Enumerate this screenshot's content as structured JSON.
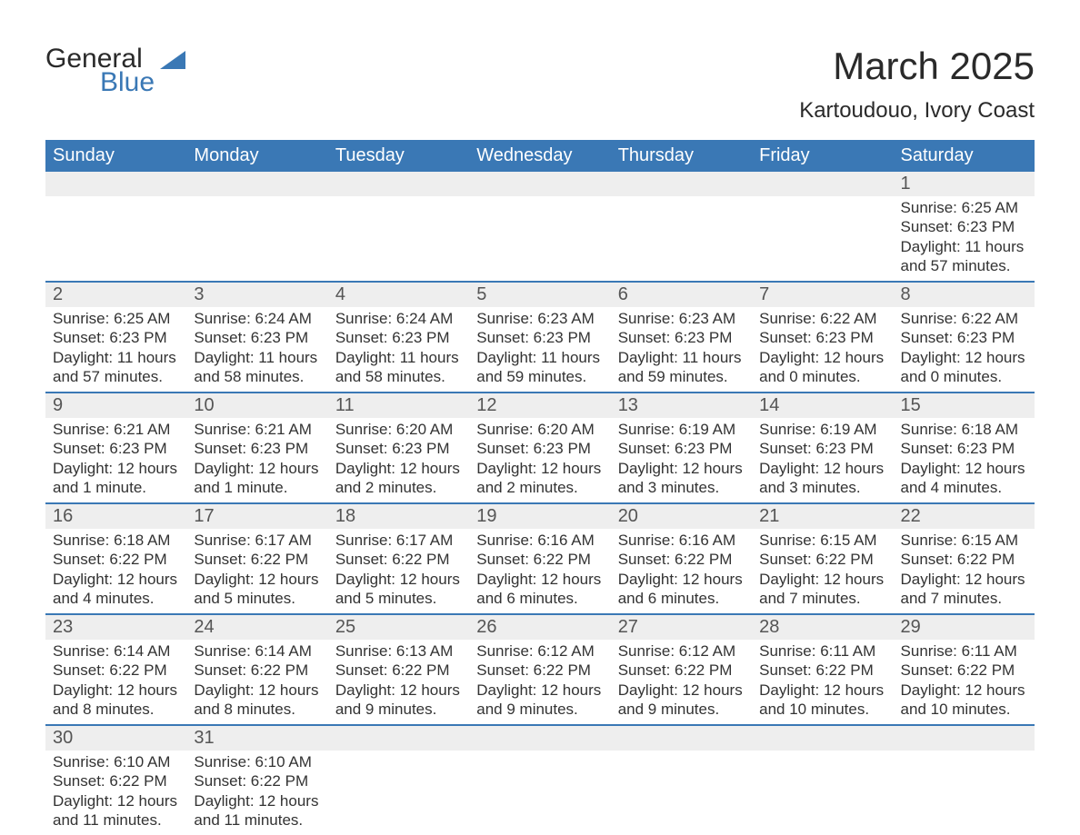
{
  "brand": {
    "line1": "General",
    "line2": "Blue",
    "logo_color": "#3a78b5",
    "text_color": "#2a2a2a"
  },
  "title": {
    "month": "March 2025",
    "location": "Kartoudouo, Ivory Coast",
    "month_fontsize": 42,
    "location_fontsize": 24
  },
  "colors": {
    "header_bg": "#3a78b5",
    "header_text": "#ffffff",
    "row_divider": "#3a78b5",
    "daynum_bg": "#eeeeee",
    "body_text": "#333333",
    "page_bg": "#ffffff"
  },
  "typography": {
    "header_fontsize": 20,
    "daynum_fontsize": 20,
    "detail_fontsize": 17,
    "font_family": "Arial"
  },
  "weekdays": [
    "Sunday",
    "Monday",
    "Tuesday",
    "Wednesday",
    "Thursday",
    "Friday",
    "Saturday"
  ],
  "weeks": [
    [
      null,
      null,
      null,
      null,
      null,
      null,
      {
        "n": "1",
        "sunrise": "Sunrise: 6:25 AM",
        "sunset": "Sunset: 6:23 PM",
        "daylight1": "Daylight: 11 hours",
        "daylight2": "and 57 minutes."
      }
    ],
    [
      {
        "n": "2",
        "sunrise": "Sunrise: 6:25 AM",
        "sunset": "Sunset: 6:23 PM",
        "daylight1": "Daylight: 11 hours",
        "daylight2": "and 57 minutes."
      },
      {
        "n": "3",
        "sunrise": "Sunrise: 6:24 AM",
        "sunset": "Sunset: 6:23 PM",
        "daylight1": "Daylight: 11 hours",
        "daylight2": "and 58 minutes."
      },
      {
        "n": "4",
        "sunrise": "Sunrise: 6:24 AM",
        "sunset": "Sunset: 6:23 PM",
        "daylight1": "Daylight: 11 hours",
        "daylight2": "and 58 minutes."
      },
      {
        "n": "5",
        "sunrise": "Sunrise: 6:23 AM",
        "sunset": "Sunset: 6:23 PM",
        "daylight1": "Daylight: 11 hours",
        "daylight2": "and 59 minutes."
      },
      {
        "n": "6",
        "sunrise": "Sunrise: 6:23 AM",
        "sunset": "Sunset: 6:23 PM",
        "daylight1": "Daylight: 11 hours",
        "daylight2": "and 59 minutes."
      },
      {
        "n": "7",
        "sunrise": "Sunrise: 6:22 AM",
        "sunset": "Sunset: 6:23 PM",
        "daylight1": "Daylight: 12 hours",
        "daylight2": "and 0 minutes."
      },
      {
        "n": "8",
        "sunrise": "Sunrise: 6:22 AM",
        "sunset": "Sunset: 6:23 PM",
        "daylight1": "Daylight: 12 hours",
        "daylight2": "and 0 minutes."
      }
    ],
    [
      {
        "n": "9",
        "sunrise": "Sunrise: 6:21 AM",
        "sunset": "Sunset: 6:23 PM",
        "daylight1": "Daylight: 12 hours",
        "daylight2": "and 1 minute."
      },
      {
        "n": "10",
        "sunrise": "Sunrise: 6:21 AM",
        "sunset": "Sunset: 6:23 PM",
        "daylight1": "Daylight: 12 hours",
        "daylight2": "and 1 minute."
      },
      {
        "n": "11",
        "sunrise": "Sunrise: 6:20 AM",
        "sunset": "Sunset: 6:23 PM",
        "daylight1": "Daylight: 12 hours",
        "daylight2": "and 2 minutes."
      },
      {
        "n": "12",
        "sunrise": "Sunrise: 6:20 AM",
        "sunset": "Sunset: 6:23 PM",
        "daylight1": "Daylight: 12 hours",
        "daylight2": "and 2 minutes."
      },
      {
        "n": "13",
        "sunrise": "Sunrise: 6:19 AM",
        "sunset": "Sunset: 6:23 PM",
        "daylight1": "Daylight: 12 hours",
        "daylight2": "and 3 minutes."
      },
      {
        "n": "14",
        "sunrise": "Sunrise: 6:19 AM",
        "sunset": "Sunset: 6:23 PM",
        "daylight1": "Daylight: 12 hours",
        "daylight2": "and 3 minutes."
      },
      {
        "n": "15",
        "sunrise": "Sunrise: 6:18 AM",
        "sunset": "Sunset: 6:23 PM",
        "daylight1": "Daylight: 12 hours",
        "daylight2": "and 4 minutes."
      }
    ],
    [
      {
        "n": "16",
        "sunrise": "Sunrise: 6:18 AM",
        "sunset": "Sunset: 6:22 PM",
        "daylight1": "Daylight: 12 hours",
        "daylight2": "and 4 minutes."
      },
      {
        "n": "17",
        "sunrise": "Sunrise: 6:17 AM",
        "sunset": "Sunset: 6:22 PM",
        "daylight1": "Daylight: 12 hours",
        "daylight2": "and 5 minutes."
      },
      {
        "n": "18",
        "sunrise": "Sunrise: 6:17 AM",
        "sunset": "Sunset: 6:22 PM",
        "daylight1": "Daylight: 12 hours",
        "daylight2": "and 5 minutes."
      },
      {
        "n": "19",
        "sunrise": "Sunrise: 6:16 AM",
        "sunset": "Sunset: 6:22 PM",
        "daylight1": "Daylight: 12 hours",
        "daylight2": "and 6 minutes."
      },
      {
        "n": "20",
        "sunrise": "Sunrise: 6:16 AM",
        "sunset": "Sunset: 6:22 PM",
        "daylight1": "Daylight: 12 hours",
        "daylight2": "and 6 minutes."
      },
      {
        "n": "21",
        "sunrise": "Sunrise: 6:15 AM",
        "sunset": "Sunset: 6:22 PM",
        "daylight1": "Daylight: 12 hours",
        "daylight2": "and 7 minutes."
      },
      {
        "n": "22",
        "sunrise": "Sunrise: 6:15 AM",
        "sunset": "Sunset: 6:22 PM",
        "daylight1": "Daylight: 12 hours",
        "daylight2": "and 7 minutes."
      }
    ],
    [
      {
        "n": "23",
        "sunrise": "Sunrise: 6:14 AM",
        "sunset": "Sunset: 6:22 PM",
        "daylight1": "Daylight: 12 hours",
        "daylight2": "and 8 minutes."
      },
      {
        "n": "24",
        "sunrise": "Sunrise: 6:14 AM",
        "sunset": "Sunset: 6:22 PM",
        "daylight1": "Daylight: 12 hours",
        "daylight2": "and 8 minutes."
      },
      {
        "n": "25",
        "sunrise": "Sunrise: 6:13 AM",
        "sunset": "Sunset: 6:22 PM",
        "daylight1": "Daylight: 12 hours",
        "daylight2": "and 9 minutes."
      },
      {
        "n": "26",
        "sunrise": "Sunrise: 6:12 AM",
        "sunset": "Sunset: 6:22 PM",
        "daylight1": "Daylight: 12 hours",
        "daylight2": "and 9 minutes."
      },
      {
        "n": "27",
        "sunrise": "Sunrise: 6:12 AM",
        "sunset": "Sunset: 6:22 PM",
        "daylight1": "Daylight: 12 hours",
        "daylight2": "and 9 minutes."
      },
      {
        "n": "28",
        "sunrise": "Sunrise: 6:11 AM",
        "sunset": "Sunset: 6:22 PM",
        "daylight1": "Daylight: 12 hours",
        "daylight2": "and 10 minutes."
      },
      {
        "n": "29",
        "sunrise": "Sunrise: 6:11 AM",
        "sunset": "Sunset: 6:22 PM",
        "daylight1": "Daylight: 12 hours",
        "daylight2": "and 10 minutes."
      }
    ],
    [
      {
        "n": "30",
        "sunrise": "Sunrise: 6:10 AM",
        "sunset": "Sunset: 6:22 PM",
        "daylight1": "Daylight: 12 hours",
        "daylight2": "and 11 minutes."
      },
      {
        "n": "31",
        "sunrise": "Sunrise: 6:10 AM",
        "sunset": "Sunset: 6:22 PM",
        "daylight1": "Daylight: 12 hours",
        "daylight2": "and 11 minutes."
      },
      null,
      null,
      null,
      null,
      null
    ]
  ]
}
